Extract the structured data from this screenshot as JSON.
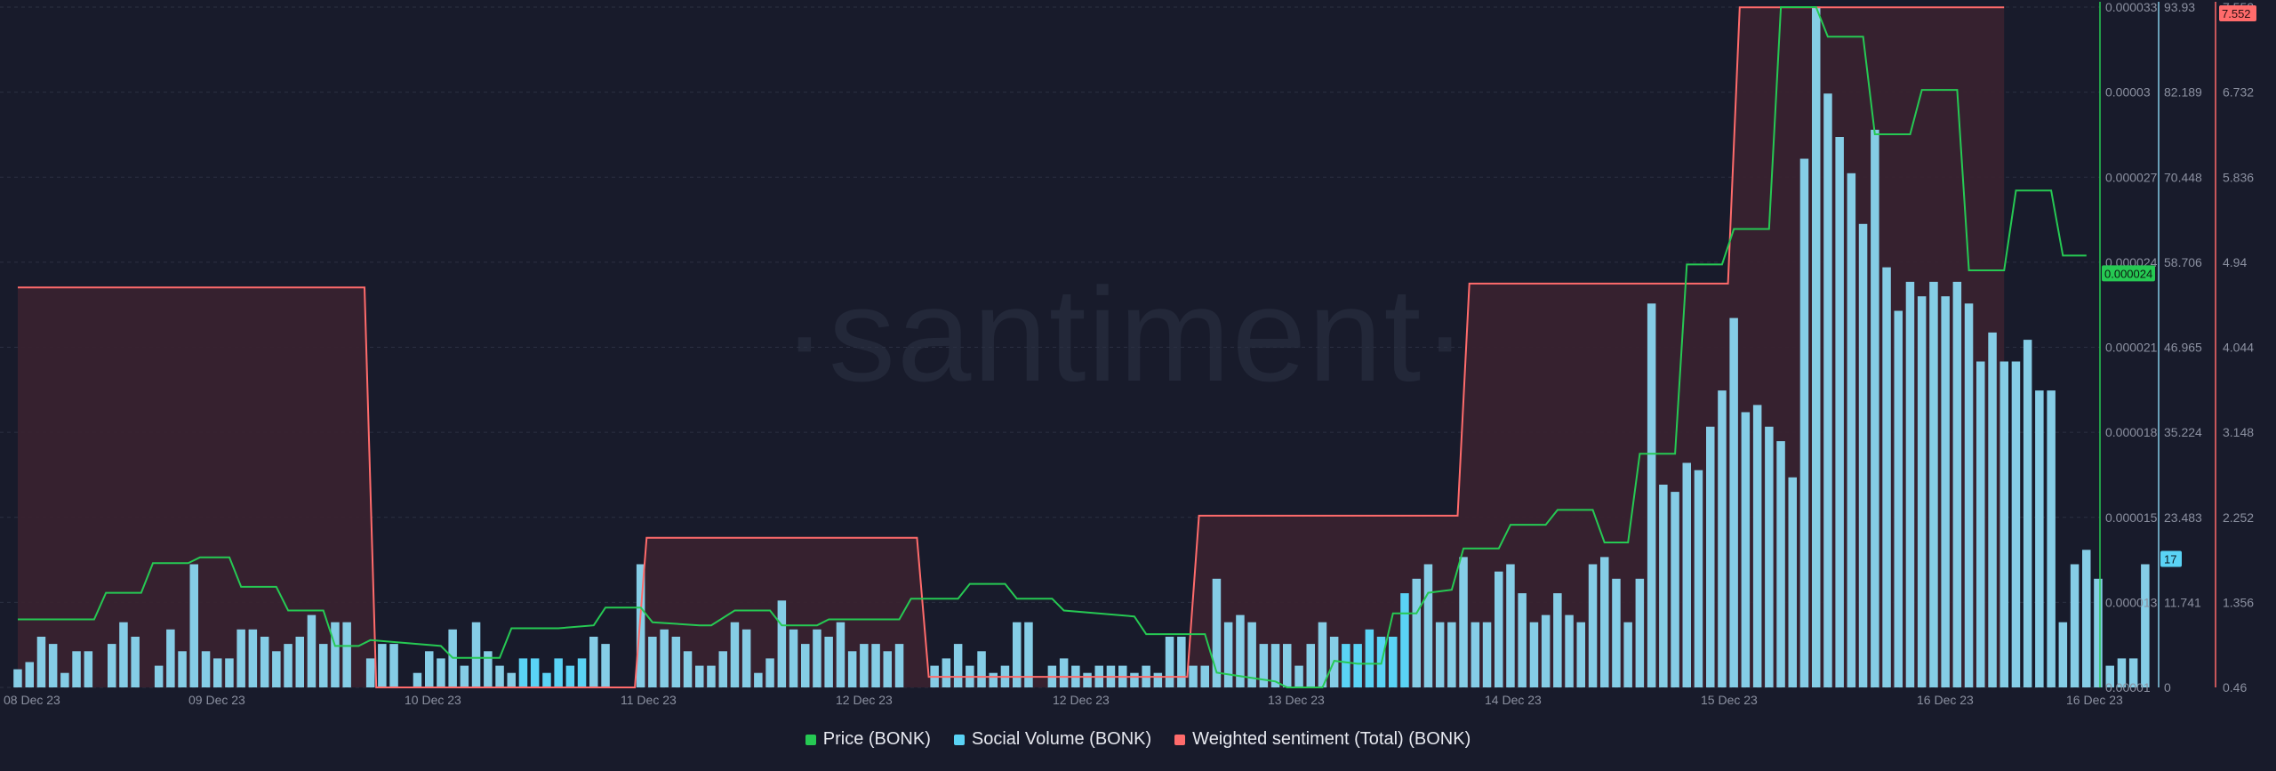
{
  "watermark": "·santiment·",
  "colors": {
    "background": "#181b2b",
    "price": "#26c953",
    "social": "#85cde6",
    "social_highlight": "#5ad3f5",
    "sentiment": "#ff6b6b",
    "sentiment_fill": "#3a2230",
    "grid": "#2b3042",
    "axis_text": "#8b90a0"
  },
  "legend": [
    {
      "label": "Price (BONK)",
      "color": "#26c953"
    },
    {
      "label": "Social Volume (BONK)",
      "color": "#5ad3f5"
    },
    {
      "label": "Weighted sentiment (Total) (BONK)",
      "color": "#ff6b6b"
    }
  ],
  "chart_data": {
    "type": "bar",
    "x_tick_labels": [
      "08 Dec 23",
      "09 Dec 23",
      "10 Dec 23",
      "11 Dec 23",
      "12 Dec 23",
      "12 Dec 23",
      "13 Dec 23",
      "14 Dec 23",
      "15 Dec 23",
      "16 Dec 23",
      "16 Dec 23"
    ],
    "axes": {
      "price": {
        "ticks": [
          "0.000033",
          "0.00003",
          "0.000027",
          "0.000024",
          "0.000021",
          "0.000018",
          "0.000015",
          "0.000013",
          "0.00001"
        ],
        "ylim": [
          1e-05,
          3.3e-05
        ],
        "current_label": "0.000024"
      },
      "social": {
        "ticks": [
          "93.93",
          "82.189",
          "70.448",
          "58.706",
          "46.965",
          "35.224",
          "23.483",
          "11.741",
          "0"
        ],
        "ylim": [
          0,
          93.93
        ],
        "current_label": "17"
      },
      "sentiment": {
        "ticks": [
          "7.552",
          "6.732",
          "5.836",
          "4.94",
          "4.044",
          "3.148",
          "2.252",
          "1.356",
          "0.46"
        ],
        "ylim": [
          0.46,
          7.552
        ],
        "current_label": "7.552"
      }
    },
    "grid": true,
    "legend_position": "bottom-center",
    "series": [
      {
        "name": "Social Volume (BONK)",
        "type": "bar",
        "axis": "social",
        "values": [
          2.5,
          3.5,
          7,
          6,
          2,
          5,
          5,
          0,
          6,
          9,
          7,
          0,
          3,
          8,
          5,
          17,
          5,
          4,
          4,
          8,
          8,
          7,
          5,
          6,
          7,
          10,
          6,
          9,
          9,
          0,
          4,
          6,
          6,
          0,
          2,
          5,
          4,
          8,
          3,
          9,
          5,
          3,
          2,
          4,
          4,
          2,
          4,
          3,
          4,
          7,
          6,
          0,
          0,
          17,
          7,
          8,
          7,
          5,
          3,
          3,
          5,
          9,
          8,
          2,
          4,
          12,
          8,
          6,
          8,
          7,
          9,
          5,
          6,
          6,
          5,
          6,
          0,
          0,
          3,
          4,
          6,
          3,
          5,
          2,
          3,
          9,
          9,
          0,
          3,
          4,
          3,
          2,
          3,
          3,
          3,
          2,
          3,
          2,
          7,
          7,
          3,
          3,
          15,
          9,
          10,
          9,
          6,
          6,
          6,
          3,
          6,
          9,
          7,
          6,
          6,
          8,
          7,
          7,
          13,
          15,
          17,
          9,
          9,
          18,
          9,
          9,
          16,
          17,
          13,
          9,
          10,
          13,
          10,
          9,
          17,
          18,
          15,
          9,
          15,
          53,
          28,
          27,
          31,
          30,
          36,
          41,
          51,
          38,
          39,
          36,
          34,
          29,
          73,
          94,
          82,
          76,
          71,
          64,
          77,
          58,
          52,
          56,
          54,
          56,
          54,
          56,
          53,
          45,
          49,
          45,
          45,
          48,
          41,
          41,
          9,
          17,
          19,
          15,
          3,
          4,
          4,
          17
        ]
      },
      {
        "name": "Price (BONK)",
        "type": "line",
        "axis": "price",
        "points": [
          [
            0,
            1.23e-05
          ],
          [
            6.5,
            1.23e-05
          ],
          [
            7.5,
            1.32e-05
          ],
          [
            10.5,
            1.32e-05
          ],
          [
            11.5,
            1.42e-05
          ],
          [
            14.5,
            1.42e-05
          ],
          [
            15.5,
            1.44e-05
          ],
          [
            18,
            1.44e-05
          ],
          [
            19,
            1.34e-05
          ],
          [
            22,
            1.34e-05
          ],
          [
            23,
            1.26e-05
          ],
          [
            26,
            1.26e-05
          ],
          [
            27,
            1.14e-05
          ],
          [
            29,
            1.14e-05
          ],
          [
            30,
            1.16e-05
          ],
          [
            36,
            1.14e-05
          ],
          [
            37,
            1.1e-05
          ],
          [
            41,
            1.1e-05
          ],
          [
            42,
            1.2e-05
          ],
          [
            45,
            1.2e-05
          ],
          [
            46,
            1.2e-05
          ],
          [
            49,
            1.21e-05
          ],
          [
            50,
            1.27e-05
          ],
          [
            53,
            1.27e-05
          ],
          [
            54,
            1.22e-05
          ],
          [
            58,
            1.21e-05
          ],
          [
            59,
            1.21e-05
          ],
          [
            61,
            1.26e-05
          ],
          [
            64,
            1.26e-05
          ],
          [
            65,
            1.21e-05
          ],
          [
            68,
            1.21e-05
          ],
          [
            69,
            1.23e-05
          ],
          [
            75,
            1.23e-05
          ],
          [
            76,
            1.3e-05
          ],
          [
            80,
            1.3e-05
          ],
          [
            81,
            1.35e-05
          ],
          [
            84,
            1.35e-05
          ],
          [
            85,
            1.3e-05
          ],
          [
            88,
            1.3e-05
          ],
          [
            89,
            1.26e-05
          ],
          [
            95,
            1.24e-05
          ],
          [
            96,
            1.18e-05
          ],
          [
            101,
            1.18e-05
          ],
          [
            102,
            1.05e-05
          ],
          [
            107,
            1.02e-05
          ],
          [
            108,
            1e-05
          ],
          [
            111,
            1e-05
          ],
          [
            112,
            1.09e-05
          ],
          [
            114,
            1.08e-05
          ],
          [
            116,
            1.08e-05
          ],
          [
            117,
            1.25e-05
          ],
          [
            119,
            1.25e-05
          ],
          [
            120,
            1.32e-05
          ],
          [
            122,
            1.33e-05
          ],
          [
            123,
            1.47e-05
          ],
          [
            126,
            1.47e-05
          ],
          [
            127,
            1.55e-05
          ],
          [
            130,
            1.55e-05
          ],
          [
            131,
            1.6e-05
          ],
          [
            134,
            1.6e-05
          ],
          [
            135,
            1.49e-05
          ],
          [
            137,
            1.49e-05
          ],
          [
            138,
            1.79e-05
          ],
          [
            141,
            1.79e-05
          ],
          [
            142,
            2.43e-05
          ],
          [
            145,
            2.43e-05
          ],
          [
            146,
            2.55e-05
          ],
          [
            149,
            2.55e-05
          ],
          [
            150,
            3.3e-05
          ],
          [
            153,
            3.3e-05
          ],
          [
            154,
            3.2e-05
          ],
          [
            157,
            3.2e-05
          ],
          [
            158,
            2.87e-05
          ],
          [
            161,
            2.87e-05
          ],
          [
            162,
            3.02e-05
          ],
          [
            165,
            3.02e-05
          ],
          [
            166,
            2.41e-05
          ],
          [
            169,
            2.41e-05
          ],
          [
            170,
            2.68e-05
          ],
          [
            173,
            2.68e-05
          ],
          [
            174,
            2.46e-05
          ],
          [
            176,
            2.46e-05
          ]
        ]
      },
      {
        "name": "Weighted sentiment (Total) (BONK)",
        "type": "step-area",
        "axis": "sentiment",
        "points": [
          [
            0,
            4.63
          ],
          [
            29.5,
            4.63
          ],
          [
            30.5,
            0.46
          ],
          [
            52.5,
            0.46
          ],
          [
            53.5,
            2.02
          ],
          [
            76.5,
            2.02
          ],
          [
            77.5,
            0.57
          ],
          [
            99.5,
            0.57
          ],
          [
            100.5,
            2.25
          ],
          [
            122.5,
            2.25
          ],
          [
            123.5,
            4.67
          ],
          [
            145.5,
            4.67
          ],
          [
            146.5,
            7.55
          ],
          [
            169,
            7.55
          ]
        ]
      }
    ]
  }
}
